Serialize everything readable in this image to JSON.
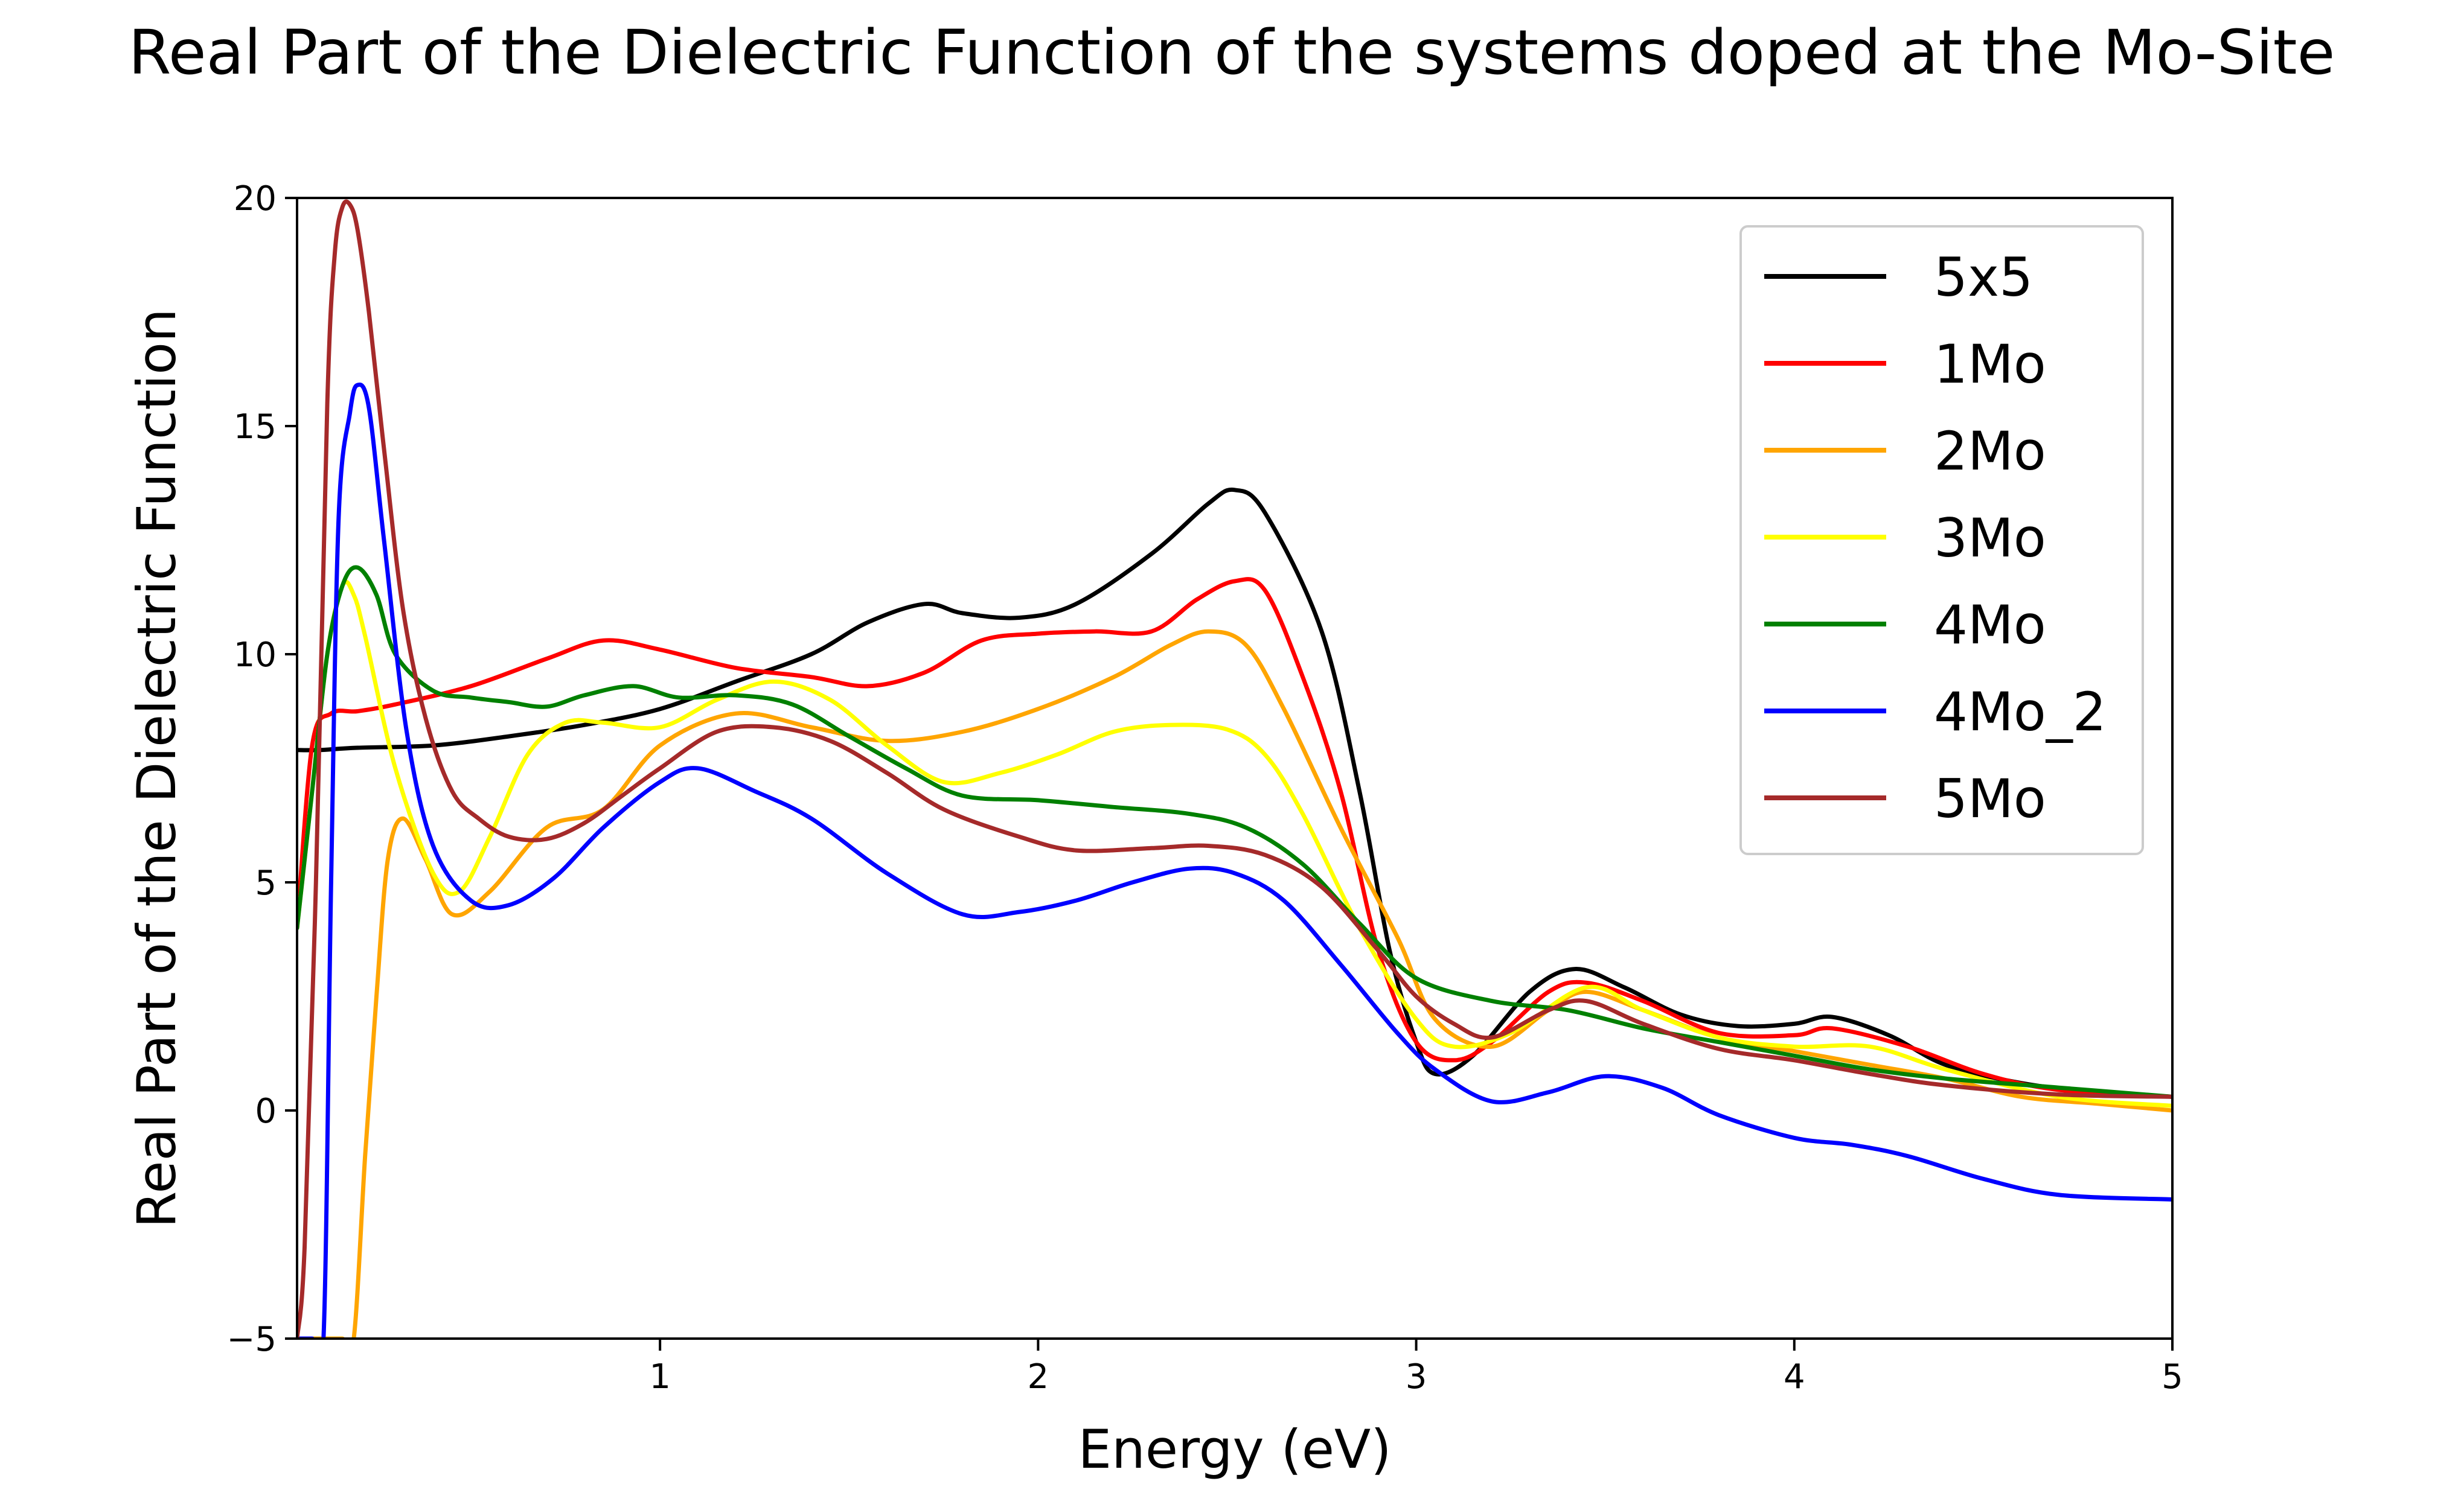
{
  "chart_data": {
    "type": "line",
    "title": "Real Part of the Dielectric Function of the systems doped at the Mo-Site",
    "xlabel": "Energy (eV)",
    "ylabel": "Real Part of the Dielectric Function",
    "xlim": [
      0.04,
      5
    ],
    "ylim": [
      -5,
      20
    ],
    "xticks": [
      1,
      2,
      3,
      4,
      5
    ],
    "xtick_labels": [
      "1",
      "2",
      "3",
      "4",
      "5"
    ],
    "yticks": [
      -5,
      0,
      5,
      10,
      15,
      20
    ],
    "ytick_labels": [
      "−5",
      "0",
      "5",
      "10",
      "15",
      "20"
    ],
    "grid": false,
    "legend_position": "upper-right",
    "series": [
      {
        "name": "5x5",
        "color": "#000000",
        "x": [
          0.04,
          0.1,
          0.2,
          0.4,
          0.6,
          0.8,
          1.0,
          1.2,
          1.4,
          1.55,
          1.7,
          1.8,
          1.95,
          2.1,
          2.3,
          2.45,
          2.52,
          2.6,
          2.75,
          2.85,
          2.93,
          3.0,
          3.05,
          3.15,
          3.3,
          3.42,
          3.55,
          3.7,
          3.85,
          4.0,
          4.1,
          4.25,
          4.4,
          4.6,
          4.8,
          5.0
        ],
        "y": [
          7.9,
          7.9,
          7.95,
          8.0,
          8.2,
          8.45,
          8.8,
          9.4,
          10.0,
          10.7,
          11.1,
          10.9,
          10.8,
          11.1,
          12.2,
          13.3,
          13.6,
          13.1,
          10.5,
          7.0,
          3.5,
          1.5,
          0.8,
          1.2,
          2.6,
          3.1,
          2.7,
          2.1,
          1.85,
          1.9,
          2.05,
          1.65,
          1.0,
          0.6,
          0.4,
          0.3
        ]
      },
      {
        "name": "1Mo",
        "color": "#ff0000",
        "x": [
          0.04,
          0.08,
          0.13,
          0.2,
          0.3,
          0.5,
          0.7,
          0.85,
          1.0,
          1.2,
          1.4,
          1.55,
          1.7,
          1.85,
          2.0,
          2.15,
          2.3,
          2.42,
          2.52,
          2.6,
          2.7,
          2.8,
          2.9,
          3.0,
          3.1,
          3.2,
          3.35,
          3.45,
          3.6,
          3.8,
          4.0,
          4.1,
          4.3,
          4.5,
          4.7,
          5.0
        ],
        "y": [
          4.0,
          8.0,
          8.7,
          8.75,
          8.9,
          9.3,
          9.9,
          10.3,
          10.1,
          9.7,
          9.5,
          9.3,
          9.6,
          10.3,
          10.45,
          10.5,
          10.5,
          11.2,
          11.6,
          11.4,
          9.5,
          7.0,
          3.5,
          1.5,
          1.1,
          1.5,
          2.6,
          2.8,
          2.4,
          1.7,
          1.65,
          1.8,
          1.4,
          0.8,
          0.45,
          0.3
        ]
      },
      {
        "name": "2Mo",
        "color": "#ffa500",
        "x": [
          0.04,
          0.08,
          0.1,
          0.13,
          0.16,
          0.19,
          0.22,
          0.25,
          0.28,
          0.32,
          0.38,
          0.45,
          0.55,
          0.7,
          0.85,
          1.0,
          1.2,
          1.4,
          1.6,
          1.8,
          2.0,
          2.2,
          2.35,
          2.45,
          2.55,
          2.65,
          2.8,
          2.95,
          3.05,
          3.2,
          3.35,
          3.45,
          3.6,
          3.8,
          4.0,
          4.2,
          4.4,
          4.6,
          4.8,
          5.0
        ],
        "y": [
          -5.0,
          -5.0,
          -5.0,
          -5.0,
          -5.0,
          -5.0,
          -1.0,
          2.5,
          5.5,
          6.4,
          5.5,
          4.3,
          4.8,
          6.2,
          6.6,
          8.0,
          8.7,
          8.4,
          8.1,
          8.3,
          8.8,
          9.5,
          10.2,
          10.5,
          10.2,
          8.8,
          6.2,
          3.8,
          2.0,
          1.4,
          2.2,
          2.6,
          2.2,
          1.6,
          1.3,
          1.0,
          0.7,
          0.3,
          0.15,
          0.0
        ]
      },
      {
        "name": "3Mo",
        "color": "#ffff00",
        "x": [
          0.04,
          0.08,
          0.12,
          0.16,
          0.19,
          0.22,
          0.3,
          0.4,
          0.47,
          0.55,
          0.65,
          0.75,
          0.85,
          1.0,
          1.15,
          1.3,
          1.45,
          1.6,
          1.75,
          1.9,
          2.05,
          2.2,
          2.35,
          2.5,
          2.6,
          2.7,
          2.85,
          3.0,
          3.1,
          3.25,
          3.45,
          3.6,
          3.8,
          4.0,
          4.2,
          4.4,
          4.7,
          5.0
        ],
        "y": [
          4.0,
          7.0,
          10.0,
          11.5,
          11.3,
          10.4,
          7.5,
          5.2,
          4.8,
          6.0,
          7.8,
          8.5,
          8.5,
          8.4,
          9.0,
          9.4,
          9.0,
          8.0,
          7.2,
          7.4,
          7.8,
          8.3,
          8.45,
          8.35,
          7.8,
          6.5,
          4.0,
          2.0,
          1.4,
          1.7,
          2.7,
          2.2,
          1.6,
          1.4,
          1.4,
          0.9,
          0.3,
          0.1
        ]
      },
      {
        "name": "4Mo",
        "color": "#008000",
        "x": [
          0.04,
          0.08,
          0.12,
          0.16,
          0.2,
          0.25,
          0.3,
          0.4,
          0.5,
          0.6,
          0.7,
          0.8,
          0.93,
          1.05,
          1.2,
          1.35,
          1.5,
          1.65,
          1.8,
          2.0,
          2.2,
          2.4,
          2.55,
          2.7,
          2.85,
          3.0,
          3.2,
          3.4,
          3.6,
          3.8,
          4.0,
          4.2,
          4.4,
          4.7,
          5.0
        ],
        "y": [
          4.0,
          7.0,
          10.0,
          11.5,
          11.9,
          11.3,
          10.0,
          9.2,
          9.05,
          8.95,
          8.85,
          9.1,
          9.3,
          9.05,
          9.1,
          8.9,
          8.2,
          7.5,
          6.9,
          6.8,
          6.65,
          6.5,
          6.2,
          5.4,
          4.1,
          2.9,
          2.4,
          2.2,
          1.8,
          1.5,
          1.2,
          0.9,
          0.7,
          0.5,
          0.3
        ]
      },
      {
        "name": "4Mo_2",
        "color": "#0000ff",
        "x": [
          0.04,
          0.08,
          0.11,
          0.13,
          0.15,
          0.18,
          0.2,
          0.23,
          0.27,
          0.33,
          0.4,
          0.5,
          0.6,
          0.72,
          0.85,
          1.0,
          1.1,
          1.25,
          1.4,
          1.6,
          1.8,
          1.95,
          2.1,
          2.25,
          2.4,
          2.52,
          2.65,
          2.8,
          2.95,
          3.05,
          3.2,
          3.35,
          3.5,
          3.65,
          3.8,
          4.0,
          4.15,
          4.3,
          4.5,
          4.7,
          5.0
        ],
        "y": [
          -5.0,
          -5.0,
          -5.0,
          5.0,
          13.0,
          15.3,
          15.9,
          15.4,
          12.5,
          8.3,
          5.8,
          4.6,
          4.5,
          5.1,
          6.2,
          7.2,
          7.5,
          7.0,
          6.4,
          5.2,
          4.3,
          4.35,
          4.6,
          5.0,
          5.3,
          5.2,
          4.6,
          3.2,
          1.7,
          0.9,
          0.2,
          0.4,
          0.75,
          0.5,
          -0.1,
          -0.6,
          -0.75,
          -1.0,
          -1.5,
          -1.85,
          -1.95
        ]
      },
      {
        "name": "5Mo",
        "color": "#a52a2a",
        "x": [
          0.04,
          0.06,
          0.09,
          0.12,
          0.14,
          0.16,
          0.18,
          0.2,
          0.23,
          0.27,
          0.32,
          0.38,
          0.45,
          0.52,
          0.6,
          0.7,
          0.8,
          0.9,
          1.0,
          1.15,
          1.3,
          1.45,
          1.6,
          1.75,
          1.95,
          2.1,
          2.3,
          2.45,
          2.6,
          2.75,
          2.9,
          3.0,
          3.1,
          3.2,
          3.35,
          3.45,
          3.6,
          3.8,
          4.0,
          4.2,
          4.4,
          4.7,
          5.0
        ],
        "y": [
          -5.0,
          -3.0,
          5.0,
          15.5,
          18.8,
          19.8,
          19.85,
          19.3,
          17.5,
          14.5,
          11.0,
          8.6,
          7.0,
          6.4,
          6.0,
          5.95,
          6.3,
          6.9,
          7.5,
          8.3,
          8.4,
          8.1,
          7.4,
          6.6,
          6.0,
          5.7,
          5.75,
          5.8,
          5.6,
          4.9,
          3.5,
          2.5,
          1.9,
          1.6,
          2.2,
          2.4,
          1.9,
          1.35,
          1.1,
          0.8,
          0.55,
          0.35,
          0.3
        ]
      }
    ]
  }
}
